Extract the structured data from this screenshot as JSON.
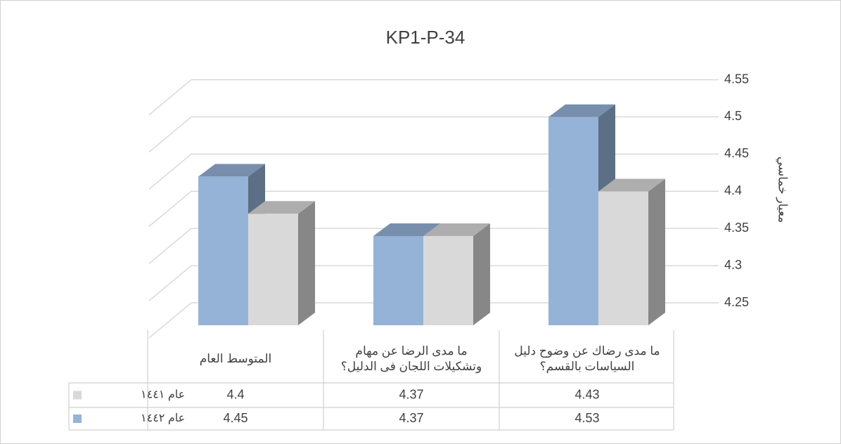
{
  "chart_data": {
    "type": "bar3d",
    "title": "KP1-P-34",
    "y_axis_label": "معيار خماسي",
    "categories": [
      "ما مدى رضاك عن وضوح دليل السياسات بالقسم؟",
      "ما مدى الرضا عن مهام وتشكيلات اللجان فى الدليل؟",
      "المتوسط العام"
    ],
    "series": [
      {
        "name": "عام ١٤٤١",
        "color": "#d9d9d9",
        "values": [
          4.43,
          4.37,
          4.4
        ]
      },
      {
        "name": "عام ١٤٤٢",
        "color": "#95b3d7",
        "values": [
          4.53,
          4.37,
          4.45
        ]
      }
    ],
    "ylim": [
      4.25,
      4.55
    ],
    "yticks": [
      4.25,
      4.3,
      4.35,
      4.4,
      4.45,
      4.5,
      4.55
    ],
    "grid": true,
    "data_table": true
  }
}
